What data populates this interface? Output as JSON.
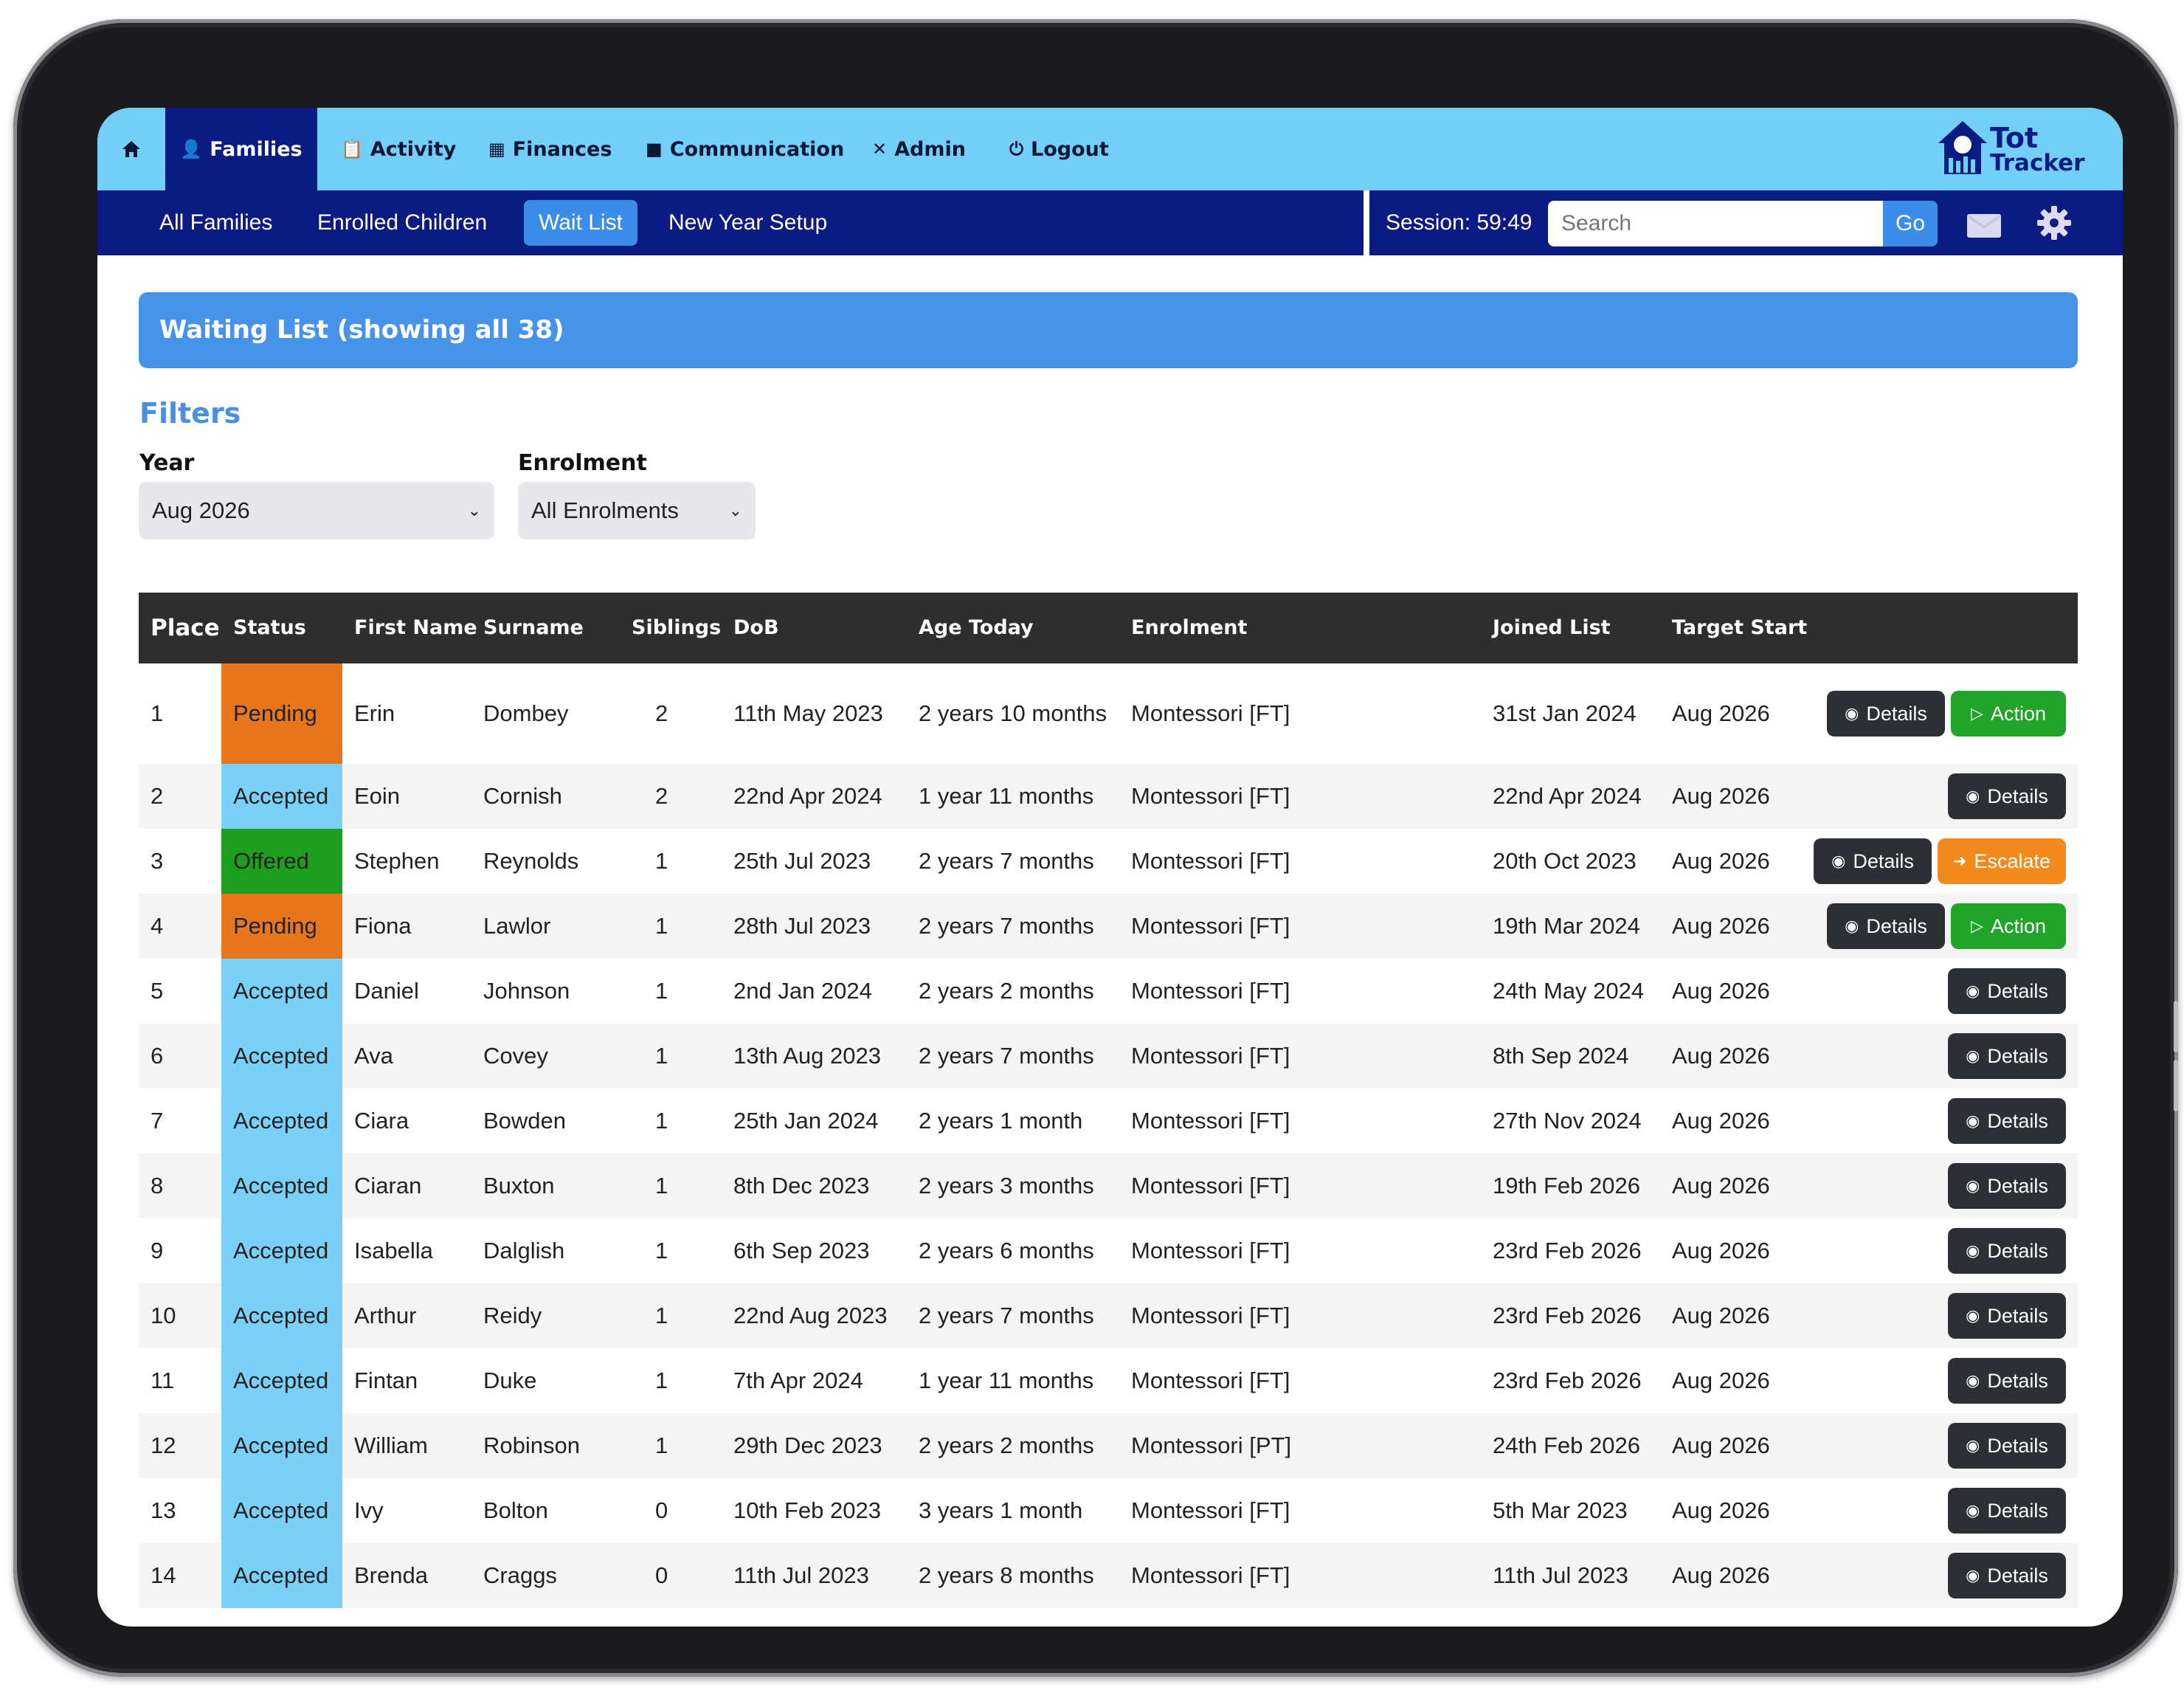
{
  "nav": {
    "items": [
      {
        "label": "Families",
        "icon": "user-icon",
        "active": true
      },
      {
        "label": "Activity",
        "icon": "clipboard-icon",
        "active": false
      },
      {
        "label": "Finances",
        "icon": "finance-icon",
        "active": false
      },
      {
        "label": "Communication",
        "icon": "truck-icon",
        "active": false
      },
      {
        "label": "Admin",
        "icon": "tools-icon",
        "active": false
      },
      {
        "label": "Logout",
        "icon": "power-icon",
        "active": false
      }
    ]
  },
  "logo": {
    "line1": "Tot",
    "line2": "Tracker"
  },
  "subnav": {
    "items": [
      "All Families",
      "Enrolled Children",
      "Wait List",
      "New Year Setup"
    ],
    "active": "Wait List",
    "session": "Session: 59:49",
    "search_placeholder": "Search",
    "go_label": "Go"
  },
  "banner": {
    "title": "Waiting List (showing all 38)"
  },
  "filters": {
    "title": "Filters",
    "year_label": "Year",
    "year_value": "Aug 2026",
    "enrolment_label": "Enrolment",
    "enrolment_value": "All Enrolments"
  },
  "table": {
    "headers": [
      "Place",
      "Status",
      "First Name",
      "Surname",
      "Siblings",
      "DoB",
      "Age Today",
      "Enrolment",
      "Joined List",
      "Target Start"
    ],
    "rows": [
      {
        "place": "1",
        "status": "Pending",
        "first": "Erin",
        "surname": "Dombey",
        "siblings": "2",
        "dob": "11th May 2023",
        "age": "2 years 10 months",
        "enrolment": "Montessori [FT]",
        "joined": "31st Jan 2024",
        "target": "Aug 2026",
        "actions": [
          "Details",
          "Action"
        ]
      },
      {
        "place": "2",
        "status": "Accepted",
        "first": "Eoin",
        "surname": "Cornish",
        "siblings": "2",
        "dob": "22nd Apr 2024",
        "age": "1 year 11 months",
        "enrolment": "Montessori [FT]",
        "joined": "22nd Apr 2024",
        "target": "Aug 2026",
        "actions": [
          "Details"
        ]
      },
      {
        "place": "3",
        "status": "Offered",
        "first": "Stephen",
        "surname": "Reynolds",
        "siblings": "1",
        "dob": "25th Jul 2023",
        "age": "2 years 7 months",
        "enrolment": "Montessori [FT]",
        "joined": "20th Oct 2023",
        "target": "Aug 2026",
        "actions": [
          "Details",
          "Escalate"
        ]
      },
      {
        "place": "4",
        "status": "Pending",
        "first": "Fiona",
        "surname": "Lawlor",
        "siblings": "1",
        "dob": "28th Jul 2023",
        "age": "2 years 7 months",
        "enrolment": "Montessori [FT]",
        "joined": "19th Mar 2024",
        "target": "Aug 2026",
        "actions": [
          "Details",
          "Action"
        ]
      },
      {
        "place": "5",
        "status": "Accepted",
        "first": "Daniel",
        "surname": "Johnson",
        "siblings": "1",
        "dob": "2nd Jan 2024",
        "age": "2 years 2 months",
        "enrolment": "Montessori [FT]",
        "joined": "24th May 2024",
        "target": "Aug 2026",
        "actions": [
          "Details"
        ]
      },
      {
        "place": "6",
        "status": "Accepted",
        "first": "Ava",
        "surname": "Covey",
        "siblings": "1",
        "dob": "13th Aug 2023",
        "age": "2 years 7 months",
        "enrolment": "Montessori [FT]",
        "joined": "8th Sep 2024",
        "target": "Aug 2026",
        "actions": [
          "Details"
        ]
      },
      {
        "place": "7",
        "status": "Accepted",
        "first": "Ciara",
        "surname": "Bowden",
        "siblings": "1",
        "dob": "25th Jan 2024",
        "age": "2 years 1 month",
        "enrolment": "Montessori [FT]",
        "joined": "27th Nov 2024",
        "target": "Aug 2026",
        "actions": [
          "Details"
        ]
      },
      {
        "place": "8",
        "status": "Accepted",
        "first": "Ciaran",
        "surname": "Buxton",
        "siblings": "1",
        "dob": "8th Dec 2023",
        "age": "2 years 3 months",
        "enrolment": "Montessori [FT]",
        "joined": "19th Feb 2026",
        "target": "Aug 2026",
        "actions": [
          "Details"
        ]
      },
      {
        "place": "9",
        "status": "Accepted",
        "first": "Isabella",
        "surname": "Dalglish",
        "siblings": "1",
        "dob": "6th Sep 2023",
        "age": "2 years 6 months",
        "enrolment": "Montessori [FT]",
        "joined": "23rd Feb 2026",
        "target": "Aug 2026",
        "actions": [
          "Details"
        ]
      },
      {
        "place": "10",
        "status": "Accepted",
        "first": "Arthur",
        "surname": "Reidy",
        "siblings": "1",
        "dob": "22nd Aug 2023",
        "age": "2 years 7 months",
        "enrolment": "Montessori [FT]",
        "joined": "23rd Feb 2026",
        "target": "Aug 2026",
        "actions": [
          "Details"
        ]
      },
      {
        "place": "11",
        "status": "Accepted",
        "first": "Fintan",
        "surname": "Duke",
        "siblings": "1",
        "dob": "7th Apr 2024",
        "age": "1 year 11 months",
        "enrolment": "Montessori [FT]",
        "joined": "23rd Feb 2026",
        "target": "Aug 2026",
        "actions": [
          "Details"
        ]
      },
      {
        "place": "12",
        "status": "Accepted",
        "first": "William",
        "surname": "Robinson",
        "siblings": "1",
        "dob": "29th Dec 2023",
        "age": "2 years 2 months",
        "enrolment": "Montessori [PT]",
        "joined": "24th Feb 2026",
        "target": "Aug 2026",
        "actions": [
          "Details"
        ]
      },
      {
        "place": "13",
        "status": "Accepted",
        "first": "Ivy",
        "surname": "Bolton",
        "siblings": "0",
        "dob": "10th Feb 2023",
        "age": "3 years 1 month",
        "enrolment": "Montessori [FT]",
        "joined": "5th Mar 2023",
        "target": "Aug 2026",
        "actions": [
          "Details"
        ]
      },
      {
        "place": "14",
        "status": "Accepted",
        "first": "Brenda",
        "surname": "Craggs",
        "siblings": "0",
        "dob": "11th Jul 2023",
        "age": "2 years 8 months",
        "enrolment": "Montessori [FT]",
        "joined": "11th Jul 2023",
        "target": "Aug 2026",
        "actions": [
          "Details"
        ]
      }
    ]
  },
  "colors": {
    "topnav": "#74cff8",
    "subnav": "#0a1b82",
    "banner": "#4893ea",
    "pending": "#e8761c",
    "accepted": "#7ad0f6",
    "offered": "#1e9e1e",
    "details_button": "#2c2f34",
    "action_button": "#22a32a",
    "escalate_button": "#f38a1d"
  }
}
